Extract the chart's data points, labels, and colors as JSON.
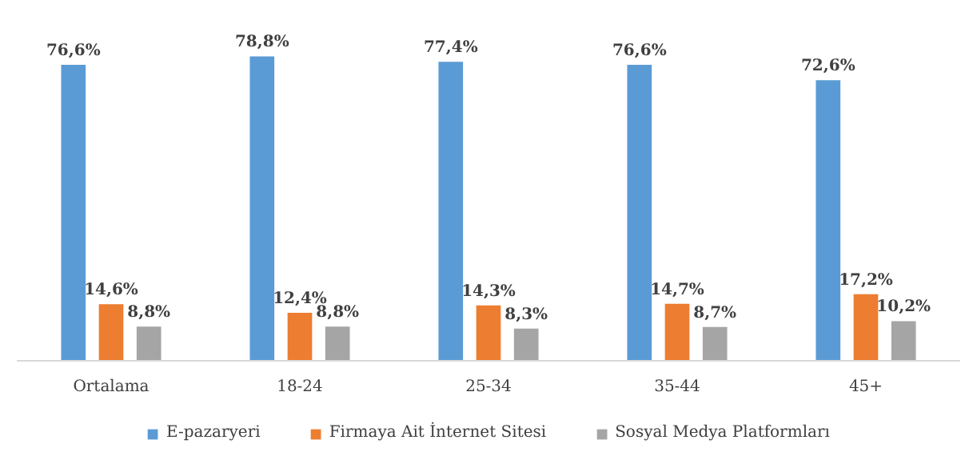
{
  "chart_data": {
    "type": "bar",
    "categories": [
      "Ortalama",
      "18-24",
      "25-34",
      "35-44",
      "45+"
    ],
    "series": [
      {
        "name": "E-pazaryeri",
        "color": "#5b9bd5",
        "values": [
          76.6,
          78.8,
          77.4,
          76.6,
          72.6
        ],
        "value_labels": [
          "76,6%",
          "78,8%",
          "77,4%",
          "76,6%",
          "72,6%"
        ]
      },
      {
        "name": "Firmaya Ait İnternet Sitesi",
        "color": "#ed7d31",
        "values": [
          14.6,
          12.4,
          14.3,
          14.7,
          17.2
        ],
        "value_labels": [
          "14,6%",
          "12,4%",
          "14,3%",
          "14,7%",
          "17,2%"
        ]
      },
      {
        "name": "Sosyal Medya Platformları",
        "color": "#a5a5a5",
        "values": [
          8.8,
          8.8,
          8.3,
          8.7,
          10.2
        ],
        "value_labels": [
          "8,8%",
          "8,8%",
          "8,3%",
          "8,7%",
          "10,2%"
        ]
      }
    ],
    "legend": "bottom",
    "grid": false
  }
}
